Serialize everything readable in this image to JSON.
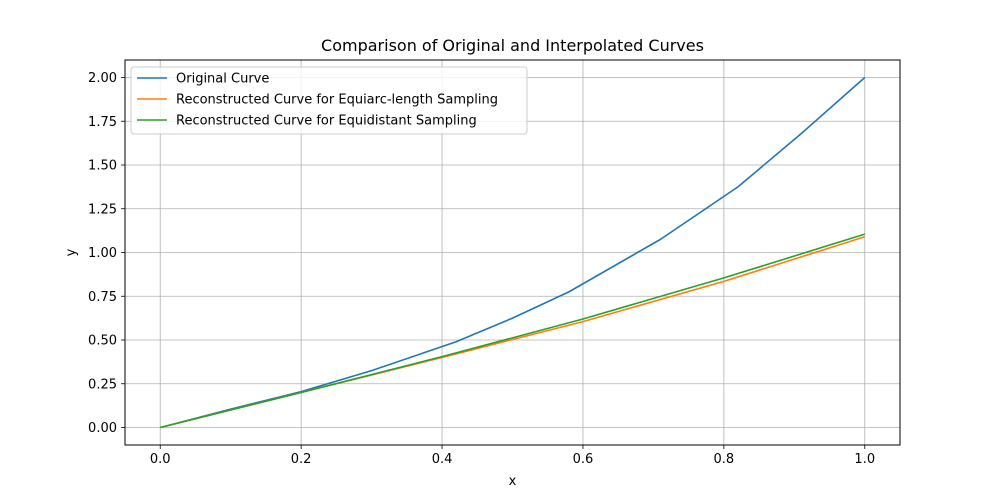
{
  "chart_data": {
    "type": "line",
    "title": "Comparison of Original and Interpolated Curves",
    "xlabel": "x",
    "ylabel": "y",
    "xlim": [
      -0.05,
      1.05
    ],
    "ylim": [
      -0.1,
      2.1
    ],
    "xticks": [
      0.0,
      0.2,
      0.4,
      0.6,
      0.8,
      1.0
    ],
    "xtick_labels": [
      "0.0",
      "0.2",
      "0.4",
      "0.6",
      "0.8",
      "1.0"
    ],
    "yticks": [
      0.0,
      0.25,
      0.5,
      0.75,
      1.0,
      1.25,
      1.5,
      1.75,
      2.0
    ],
    "ytick_labels": [
      "0.00",
      "0.25",
      "0.50",
      "0.75",
      "1.00",
      "1.25",
      "1.50",
      "1.75",
      "2.00"
    ],
    "grid": true,
    "legend_position": "upper-left",
    "series": [
      {
        "name": "Original Curve",
        "color": "#1f77b4",
        "x": [
          0.0,
          0.1,
          0.2,
          0.3,
          0.42,
          0.5,
          0.58,
          0.71,
          0.82,
          0.91,
          1.0
        ],
        "y": [
          0.0,
          0.105,
          0.205,
          0.325,
          0.49,
          0.625,
          0.775,
          1.075,
          1.375,
          1.68,
          2.0
        ]
      },
      {
        "name": "Reconstructed Curve for Equiarc-length Sampling",
        "color": "#ff7f0e",
        "x": [
          0.0,
          0.2,
          0.4,
          0.6,
          0.8,
          1.0
        ],
        "y": [
          0.0,
          0.2,
          0.4,
          0.605,
          0.835,
          1.09
        ]
      },
      {
        "name": "Reconstructed Curve for Equidistant Sampling",
        "color": "#2ca02c",
        "x": [
          0.0,
          0.2,
          0.4,
          0.6,
          0.8,
          1.0
        ],
        "y": [
          0.0,
          0.2,
          0.405,
          0.62,
          0.855,
          1.105
        ]
      }
    ]
  }
}
